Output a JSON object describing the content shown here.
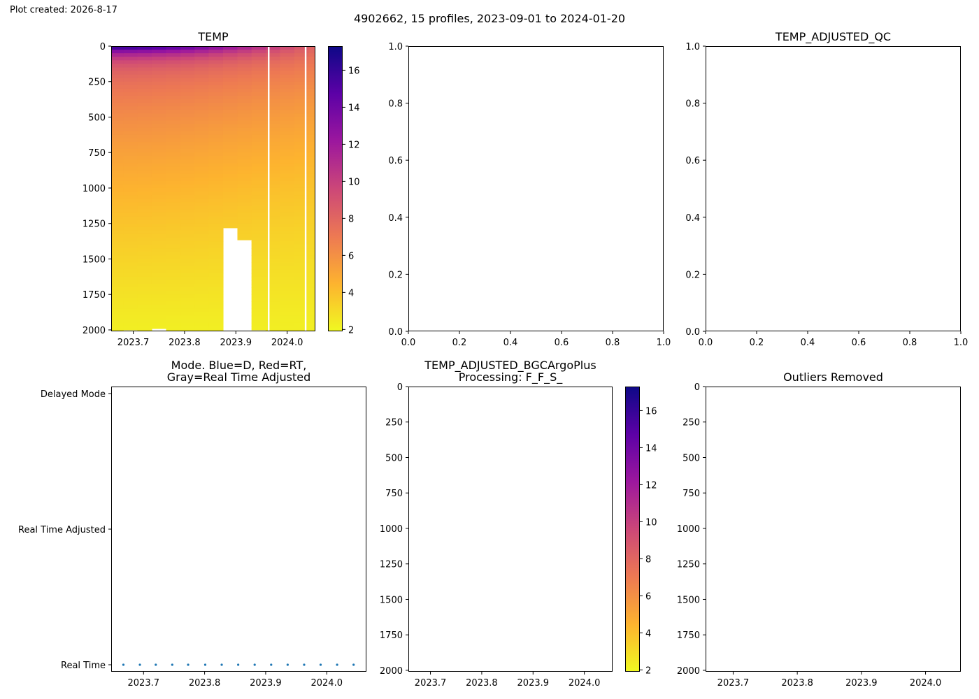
{
  "header": {
    "created": "Plot created: 2026-8-17",
    "title": "4902662, 15 profiles, 2023-09-01 to 2024-01-20"
  },
  "colors": {
    "colormap": [
      "#f0f921",
      "#fdb32f",
      "#ed7953",
      "#cc4778",
      "#9c179e",
      "#5c01a6",
      "#0d0887"
    ],
    "mode_points": "#1f77b4",
    "axis": "#000000"
  },
  "chart_data": [
    {
      "id": "temp",
      "type": "heatmap",
      "title": "TEMP",
      "x_ticks": [
        "2023.7",
        "2023.8",
        "2023.9",
        "2024.0"
      ],
      "x_tick_values": [
        2023.7,
        2023.8,
        2023.9,
        2024.0
      ],
      "xlim": [
        2023.657,
        2024.055
      ],
      "y_ticks": [
        "0",
        "250",
        "500",
        "750",
        "1000",
        "1250",
        "1500",
        "1750",
        "2000"
      ],
      "ylim": [
        2010,
        0
      ],
      "colorbar": {
        "ticks": [
          "2",
          "4",
          "6",
          "8",
          "10",
          "12",
          "14",
          "16"
        ],
        "range": [
          1.9,
          17.3
        ]
      },
      "profiles": [
        {
          "x": 2023.667,
          "surface_temp": 17.0,
          "max_depth": 2005
        },
        {
          "x": 2023.694,
          "surface_temp": 16.9,
          "max_depth": 2000
        },
        {
          "x": 2023.722,
          "surface_temp": 16.6,
          "max_depth": 2008
        },
        {
          "x": 2023.75,
          "surface_temp": 16.2,
          "max_depth": 1990
        },
        {
          "x": 2023.778,
          "surface_temp": 15.7,
          "max_depth": 2008
        },
        {
          "x": 2023.806,
          "surface_temp": 15.1,
          "max_depth": 2015
        },
        {
          "x": 2023.833,
          "surface_temp": 14.4,
          "max_depth": 2015
        },
        {
          "x": 2023.861,
          "surface_temp": 13.6,
          "max_depth": 2005
        },
        {
          "x": 2023.889,
          "surface_temp": 12.8,
          "max_depth": 1280
        },
        {
          "x": 2023.917,
          "surface_temp": 12.0,
          "max_depth": 1365
        },
        {
          "x": 2023.944,
          "surface_temp": 11.2,
          "max_depth": 2000
        },
        {
          "x": 2023.972,
          "surface_temp": 10.4,
          "max_depth": 2003
        },
        {
          "x": 2024.0,
          "surface_temp": 9.6,
          "max_depth": 2010
        },
        {
          "x": 2024.028,
          "surface_temp": 8.9,
          "max_depth": 2003
        },
        {
          "x": 2024.055,
          "surface_temp": 8.3,
          "max_depth": 2003
        }
      ],
      "gaps_x": [
        2023.964,
        2024.036
      ]
    },
    {
      "id": "empty1",
      "type": "scatter",
      "title": "",
      "x_ticks": [
        "0.0",
        "0.2",
        "0.4",
        "0.6",
        "0.8",
        "1.0"
      ],
      "y_ticks": [
        "0.0",
        "0.2",
        "0.4",
        "0.6",
        "0.8",
        "1.0"
      ],
      "xlim": [
        0,
        1
      ],
      "ylim": [
        0,
        1
      ]
    },
    {
      "id": "qc",
      "type": "scatter",
      "title": "TEMP_ADJUSTED_QC",
      "x_ticks": [
        "0.0",
        "0.2",
        "0.4",
        "0.6",
        "0.8",
        "1.0"
      ],
      "y_ticks": [
        "0.0",
        "0.2",
        "0.4",
        "0.6",
        "0.8",
        "1.0"
      ],
      "xlim": [
        0,
        1
      ],
      "ylim": [
        0,
        1
      ]
    },
    {
      "id": "mode",
      "type": "scatter",
      "title_lines": [
        "Mode. Blue=D, Red=RT,",
        "Gray=Real Time Adjusted"
      ],
      "y_categories": [
        "Real Time",
        "Real Time Adjusted",
        "Delayed Mode"
      ],
      "x_ticks": [
        "2023.7",
        "2023.8",
        "2023.9",
        "2024.0"
      ],
      "x_tick_values": [
        2023.7,
        2023.8,
        2023.9,
        2024.0
      ],
      "xlim": [
        2023.647,
        2024.065
      ],
      "points_x": [
        2023.667,
        2023.694,
        2023.72,
        2023.747,
        2023.773,
        2023.801,
        2023.828,
        2023.855,
        2023.882,
        2023.909,
        2023.936,
        2023.963,
        2023.99,
        2024.017,
        2024.044
      ],
      "points_y": 0
    },
    {
      "id": "bgc",
      "type": "heatmap",
      "title_lines": [
        "TEMP_ADJUSTED_BGCArgoPlus",
        "Processing: F_F_S_"
      ],
      "x_ticks": [
        "2023.7",
        "2023.8",
        "2023.9",
        "2024.0"
      ],
      "x_tick_values": [
        2023.7,
        2023.8,
        2023.9,
        2024.0
      ],
      "xlim": [
        2023.657,
        2024.055
      ],
      "y_ticks": [
        "0",
        "250",
        "500",
        "750",
        "1000",
        "1250",
        "1500",
        "1750",
        "2000"
      ],
      "ylim": [
        2010,
        0
      ],
      "colorbar": {
        "ticks": [
          "2",
          "4",
          "6",
          "8",
          "10",
          "12",
          "14",
          "16"
        ],
        "range": [
          1.9,
          17.3
        ]
      }
    },
    {
      "id": "outliers",
      "type": "heatmap",
      "title": "Outliers Removed",
      "x_ticks": [
        "2023.7",
        "2023.8",
        "2023.9",
        "2024.0"
      ],
      "x_tick_values": [
        2023.7,
        2023.8,
        2023.9,
        2024.0
      ],
      "xlim": [
        2023.657,
        2024.055
      ],
      "y_ticks": [
        "0",
        "250",
        "500",
        "750",
        "1000",
        "1250",
        "1500",
        "1750",
        "2000"
      ],
      "ylim": [
        2010,
        0
      ]
    }
  ]
}
